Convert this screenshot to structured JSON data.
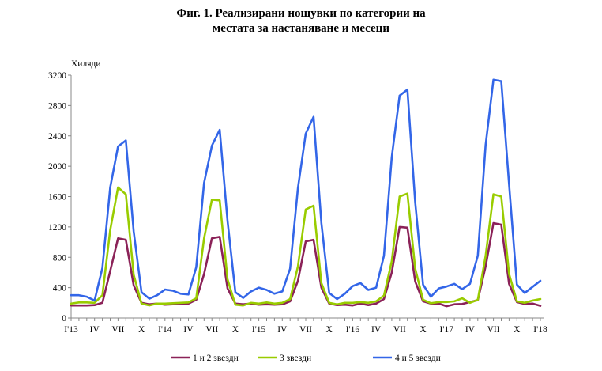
{
  "chart_data": {
    "type": "line",
    "title_line1": "Фиг. 1. Реализирани нощувки по категории на",
    "title_line2": "местата за настаняване и месеци",
    "ylabel": "Хиляди",
    "ylim": [
      0,
      3200
    ],
    "yticks": [
      0,
      400,
      800,
      1200,
      1600,
      2000,
      2400,
      2800,
      3200
    ],
    "grid": false,
    "legend_position": "bottom",
    "x_tick_labels": [
      {
        "index": 0,
        "label": "І'13"
      },
      {
        "index": 3,
        "label": "IV"
      },
      {
        "index": 6,
        "label": "VII"
      },
      {
        "index": 9,
        "label": "X"
      },
      {
        "index": 12,
        "label": "І'14"
      },
      {
        "index": 15,
        "label": "IV"
      },
      {
        "index": 18,
        "label": "VII"
      },
      {
        "index": 21,
        "label": "X"
      },
      {
        "index": 24,
        "label": "І'15"
      },
      {
        "index": 27,
        "label": "IV"
      },
      {
        "index": 30,
        "label": "VII"
      },
      {
        "index": 33,
        "label": "X"
      },
      {
        "index": 36,
        "label": "І'16"
      },
      {
        "index": 39,
        "label": "IV"
      },
      {
        "index": 42,
        "label": "VII"
      },
      {
        "index": 45,
        "label": "X"
      },
      {
        "index": 48,
        "label": "І'17"
      },
      {
        "index": 51,
        "label": "IV"
      },
      {
        "index": 54,
        "label": "VII"
      },
      {
        "index": 57,
        "label": "X"
      },
      {
        "index": 60,
        "label": "І'18"
      }
    ],
    "series": [
      {
        "name": "1 и 2 звезди",
        "color": "#8b2258",
        "values": [
          165,
          165,
          165,
          170,
          200,
          620,
          1050,
          1030,
          430,
          200,
          180,
          190,
          175,
          180,
          185,
          190,
          240,
          580,
          1050,
          1070,
          390,
          190,
          180,
          190,
          175,
          180,
          175,
          180,
          220,
          490,
          1010,
          1030,
          400,
          190,
          170,
          175,
          165,
          190,
          170,
          190,
          250,
          600,
          1200,
          1190,
          480,
          220,
          190,
          190,
          155,
          180,
          185,
          210,
          235,
          680,
          1250,
          1230,
          450,
          210,
          185,
          190,
          160
        ]
      },
      {
        "name": "3 звезди",
        "color": "#99cc00",
        "values": [
          190,
          205,
          205,
          200,
          300,
          1160,
          1720,
          1630,
          570,
          190,
          165,
          190,
          190,
          195,
          200,
          205,
          260,
          1050,
          1560,
          1550,
          510,
          175,
          165,
          200,
          190,
          205,
          190,
          200,
          250,
          680,
          1430,
          1480,
          460,
          200,
          180,
          200,
          200,
          210,
          200,
          220,
          295,
          750,
          1600,
          1640,
          650,
          240,
          195,
          210,
          210,
          220,
          260,
          200,
          240,
          820,
          1630,
          1600,
          580,
          220,
          200,
          230,
          250
        ]
      },
      {
        "name": "4 и 5 звезди",
        "color": "#3366e8",
        "values": [
          300,
          300,
          280,
          230,
          660,
          1720,
          2260,
          2340,
          1140,
          340,
          255,
          300,
          375,
          360,
          320,
          310,
          670,
          1780,
          2270,
          2480,
          1280,
          340,
          265,
          350,
          400,
          370,
          320,
          350,
          650,
          1710,
          2430,
          2650,
          1250,
          330,
          250,
          320,
          420,
          460,
          370,
          400,
          820,
          2120,
          2930,
          3010,
          1520,
          440,
          280,
          390,
          415,
          450,
          380,
          450,
          820,
          2280,
          3140,
          3120,
          1760,
          440,
          330,
          410,
          490
        ]
      }
    ]
  }
}
